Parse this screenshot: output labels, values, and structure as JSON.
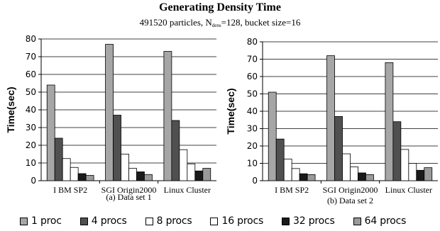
{
  "title": "Generating Density Time",
  "subtitle": {
    "before": "491520 particles, N",
    "sub": "dens",
    "after": "=128, bucket size=16"
  },
  "legend": [
    {
      "label": "1 proc",
      "color": "#a6a6a6"
    },
    {
      "label": "4 procs",
      "color": "#505050"
    },
    {
      "label": "8 procs",
      "color": "#ffffff"
    },
    {
      "label": "16 procs",
      "color": "#ffffff"
    },
    {
      "label": "32 procs",
      "color": "#1a1a1a"
    },
    {
      "label": "64 procs",
      "color": "#9a9a9a"
    }
  ],
  "chart_data": [
    {
      "type": "bar",
      "caption": "(a) Data set 1",
      "ylabel": "Time(sec)",
      "xlabel": "",
      "ylim": [
        0,
        80
      ],
      "ytick_step": 10,
      "grid": true,
      "categories": [
        "I BM SP2",
        "SGI Origin2000",
        "Linux Cluster"
      ],
      "series": [
        {
          "name": "1 proc",
          "values": [
            54,
            77,
            73
          ]
        },
        {
          "name": "4 procs",
          "values": [
            24,
            37,
            34
          ]
        },
        {
          "name": "8 procs",
          "values": [
            12.5,
            15,
            17.5
          ]
        },
        {
          "name": "16 procs",
          "values": [
            7.5,
            7,
            9.5
          ]
        },
        {
          "name": "32 procs",
          "values": [
            4,
            5,
            5.5
          ]
        },
        {
          "name": "64 procs",
          "values": [
            3,
            3.5,
            7
          ]
        }
      ]
    },
    {
      "type": "bar",
      "caption": "(b) Data set 2",
      "ylabel": "Time(sec)",
      "xlabel": "",
      "ylim": [
        0,
        80
      ],
      "ytick_step": 10,
      "grid": true,
      "categories": [
        "I BM SP2",
        "SGI Origin2000",
        "Linux Cluster"
      ],
      "series": [
        {
          "name": "1 proc",
          "values": [
            51,
            72,
            68
          ]
        },
        {
          "name": "4 procs",
          "values": [
            24,
            37,
            34
          ]
        },
        {
          "name": "8 procs",
          "values": [
            12.5,
            15.5,
            18
          ]
        },
        {
          "name": "16 procs",
          "values": [
            7,
            8,
            10
          ]
        },
        {
          "name": "32 procs",
          "values": [
            4,
            4.5,
            6
          ]
        },
        {
          "name": "64 procs",
          "values": [
            3.5,
            3.5,
            7.5
          ]
        }
      ]
    }
  ]
}
